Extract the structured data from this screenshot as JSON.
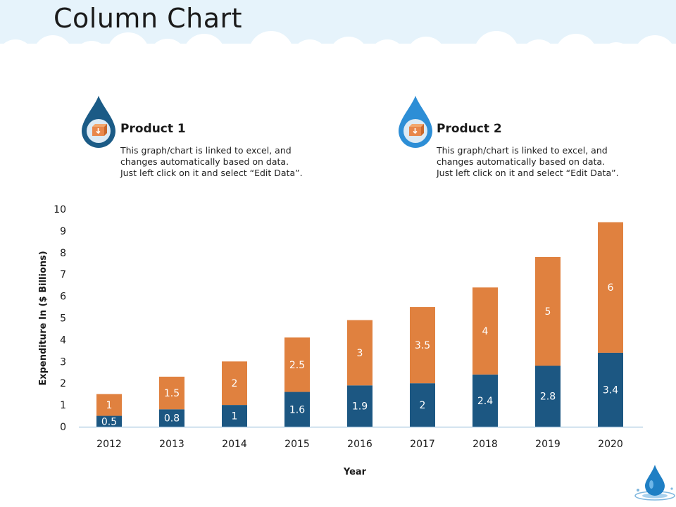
{
  "page": {
    "title": "Column Chart"
  },
  "legend": [
    {
      "name": "Product 1",
      "color": "#e0813f",
      "drop_color": "#1b5b86",
      "desc": [
        "This graph/chart is linked to excel, and",
        "changes automatically based on data.",
        "Just left click on it and select “Edit Data”."
      ]
    },
    {
      "name": "Product 2",
      "color": "#1c5782",
      "drop_color": "#2d8ed6",
      "desc": [
        "This graph/chart is linked to excel, and",
        "changes automatically based on data.",
        "Just left click on it and select “Edit Data”."
      ]
    }
  ],
  "chart_data": {
    "type": "bar",
    "stacked": true,
    "categories": [
      "2012",
      "2013",
      "2014",
      "2015",
      "2016",
      "2017",
      "2018",
      "2019",
      "2020"
    ],
    "series": [
      {
        "name": "Product 2",
        "color": "#1c5782",
        "values": [
          0.5,
          0.8,
          1,
          1.6,
          1.9,
          2,
          2.4,
          2.8,
          3.4
        ],
        "labels": [
          "0.5",
          "0.8",
          "1",
          "1.6",
          "1.9",
          "2",
          "2.4",
          "2.8",
          "3.4"
        ]
      },
      {
        "name": "Product 1",
        "color": "#e0813f",
        "values": [
          1,
          1.5,
          2,
          2.5,
          3,
          3.5,
          4,
          5,
          6
        ],
        "labels": [
          "1",
          "1.5",
          "2",
          "2.5",
          "3",
          "3.5",
          "4",
          "5",
          "6"
        ]
      }
    ],
    "xlabel": "Year",
    "ylabel": "Expenditure In ($ Billions)",
    "ylim": [
      0,
      10
    ],
    "yticks": [
      "0",
      "1",
      "2",
      "3",
      "4",
      "5",
      "6",
      "7",
      "8",
      "9",
      "10"
    ],
    "grid": false
  }
}
